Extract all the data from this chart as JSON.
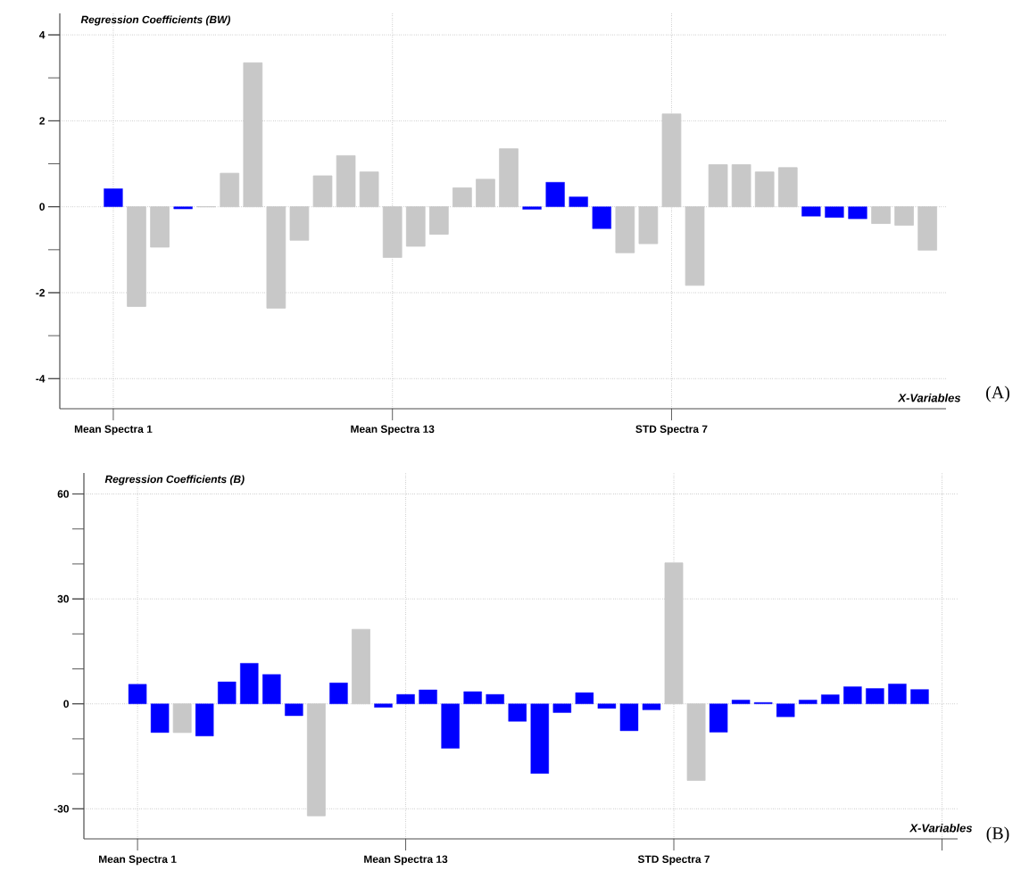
{
  "chart_data": [
    {
      "type": "bar",
      "title": "Regression Coefficients (BW)",
      "xlabel": "X-Variables",
      "categories": [
        "Mean Spectra 1",
        null,
        null,
        null,
        null,
        null,
        null,
        null,
        null,
        null,
        null,
        null,
        "Mean Spectra 13",
        null,
        null,
        null,
        null,
        null,
        null,
        null,
        null,
        null,
        null,
        null,
        "STD Spectra 7",
        null,
        null,
        null,
        null,
        null,
        null,
        null,
        null,
        null,
        null,
        null
      ],
      "series": [
        {
          "color": "#0000ff",
          "values": [
            0.42,
            null,
            null,
            -0.05,
            null,
            null,
            null,
            null,
            null,
            null,
            null,
            null,
            null,
            null,
            null,
            null,
            null,
            null,
            -0.06,
            0.57,
            0.23,
            -0.51,
            null,
            null,
            null,
            null,
            null,
            null,
            null,
            null,
            -0.22,
            -0.25,
            -0.28,
            null,
            null,
            null
          ]
        },
        {
          "color": "#c8c8c8",
          "values": [
            null,
            -2.32,
            -0.94,
            null,
            0,
            0.78,
            3.35,
            -2.36,
            -0.78,
            0.72,
            1.19,
            0.81,
            -1.18,
            -0.92,
            -0.64,
            0.44,
            0.64,
            1.35,
            null,
            null,
            null,
            null,
            -1.07,
            -0.86,
            2.16,
            -1.83,
            0.98,
            0.98,
            0.81,
            0.91,
            null,
            null,
            null,
            -0.39,
            -0.43,
            -1.01
          ]
        }
      ],
      "ylim": [
        -4.7,
        4.5
      ],
      "yticks": [
        -4,
        -2,
        0,
        2,
        4
      ],
      "grid": true,
      "line_style": "dotted",
      "annotations": [
        "(A)"
      ]
    },
    {
      "type": "bar",
      "title": "Regression Coefficients (B)",
      "xlabel": "X-Variables",
      "categories": [
        "Mean Spectra 1",
        null,
        null,
        null,
        null,
        null,
        null,
        null,
        null,
        null,
        null,
        null,
        "Mean Spectra 13",
        null,
        null,
        null,
        null,
        null,
        null,
        null,
        null,
        null,
        null,
        null,
        "STD Spectra 7",
        null,
        null,
        null,
        null,
        null,
        null,
        null,
        null,
        null,
        null,
        null
      ],
      "series": [
        {
          "color": "#0000ff",
          "values": [
            5.6,
            -8.2,
            null,
            -9.2,
            6.3,
            11.6,
            8.4,
            -3.4,
            null,
            6.0,
            null,
            -1.0,
            2.7,
            4.0,
            -12.7,
            3.5,
            2.7,
            -5.0,
            -19.9,
            -2.5,
            3.2,
            -1.3,
            -7.7,
            -1.7,
            null,
            null,
            -8.1,
            1.1,
            0.4,
            -3.7,
            1.1,
            2.6,
            4.9,
            4.4,
            5.7,
            4.1
          ]
        },
        {
          "color": "#c8c8c8",
          "values": [
            null,
            null,
            -8.2,
            null,
            null,
            null,
            null,
            null,
            -32,
            null,
            21.3,
            null,
            null,
            null,
            null,
            null,
            null,
            null,
            null,
            null,
            null,
            null,
            null,
            null,
            40.3,
            -21.9,
            null,
            null,
            null,
            null,
            null,
            null,
            null,
            null,
            null,
            null
          ]
        }
      ],
      "ylim": [
        -38.6,
        66
      ],
      "yticks": [
        -30,
        0,
        30,
        60
      ],
      "grid": true,
      "line_style": "dotted",
      "annotations": [
        "(B)"
      ]
    }
  ]
}
